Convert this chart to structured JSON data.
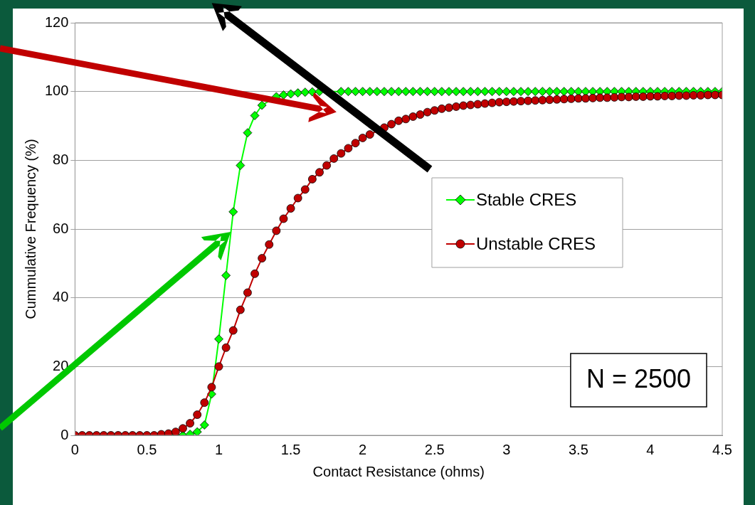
{
  "chart_data": {
    "type": "line",
    "xlabel": "Contact Resistance (ohms)",
    "ylabel": "Cummulative Frequency (%)",
    "x": [
      0,
      0.05,
      0.1,
      0.15,
      0.2,
      0.25,
      0.3,
      0.35,
      0.4,
      0.45,
      0.5,
      0.55,
      0.6,
      0.65,
      0.7,
      0.75,
      0.8,
      0.85,
      0.9,
      0.95,
      1,
      1.05,
      1.1,
      1.15,
      1.2,
      1.25,
      1.3,
      1.35,
      1.4,
      1.45,
      1.5,
      1.55,
      1.6,
      1.65,
      1.7,
      1.75,
      1.8,
      1.85,
      1.9,
      1.95,
      2,
      2.05,
      2.1,
      2.15,
      2.2,
      2.25,
      2.3,
      2.35,
      2.4,
      2.45,
      2.5,
      2.55,
      2.6,
      2.65,
      2.7,
      2.75,
      2.8,
      2.85,
      2.9,
      2.95,
      3,
      3.05,
      3.1,
      3.15,
      3.2,
      3.25,
      3.3,
      3.35,
      3.4,
      3.45,
      3.5,
      3.55,
      3.6,
      3.65,
      3.7,
      3.75,
      3.8,
      3.85,
      3.9,
      3.95,
      4,
      4.05,
      4.1,
      4.15,
      4.2,
      4.25,
      4.3,
      4.35,
      4.4,
      4.45,
      4.5
    ],
    "series": [
      {
        "name": "Stable CRES",
        "color": "#00ff00",
        "marker": "diamond",
        "values": [
          null,
          null,
          null,
          null,
          null,
          null,
          null,
          null,
          null,
          null,
          null,
          null,
          null,
          null,
          0,
          0,
          0.3,
          1,
          3,
          12,
          28,
          46.5,
          65,
          78.5,
          88,
          93,
          96,
          null,
          98.5,
          99,
          99.3,
          99.6,
          99.8,
          99.9,
          100,
          null,
          null,
          100,
          100,
          100,
          100,
          100,
          100,
          100,
          100,
          100,
          100,
          100,
          100,
          100,
          100,
          100,
          100,
          100,
          100,
          100,
          100,
          100,
          100,
          100,
          100,
          100,
          100,
          100,
          100,
          100,
          100,
          100,
          100,
          100,
          100,
          100,
          100,
          100,
          100,
          100,
          100,
          100,
          100,
          100,
          100,
          100,
          100,
          100,
          100,
          100,
          100,
          100,
          100,
          100,
          100
        ]
      },
      {
        "name": "Unstable CRES",
        "color": "#c00000",
        "marker": "circle",
        "values": [
          0,
          0,
          0,
          0,
          0,
          0,
          0,
          0,
          0,
          0,
          0,
          0,
          0.3,
          0.5,
          1,
          2,
          3.5,
          6,
          9.5,
          14,
          20,
          25.5,
          30.5,
          36.5,
          41.5,
          47,
          51.5,
          55.5,
          59.5,
          63,
          66,
          69,
          71.5,
          74.5,
          76.5,
          78.5,
          80.5,
          82,
          83.5,
          85,
          86.5,
          87.5,
          null,
          89.5,
          90.5,
          91.5,
          92,
          92.7,
          93.3,
          94,
          94.5,
          95,
          95.3,
          95.6,
          95.9,
          96.1,
          96.3,
          96.5,
          96.7,
          96.9,
          97,
          97.1,
          97.2,
          97.3,
          97.4,
          97.5,
          97.6,
          97.7,
          97.8,
          97.9,
          98,
          98,
          98.1,
          98.2,
          98.2,
          98.3,
          98.4,
          98.4,
          98.5,
          98.5,
          98.6,
          98.6,
          98.7,
          98.7,
          98.8,
          98.8,
          98.9,
          98.9,
          99,
          99,
          99
        ]
      }
    ],
    "xlim": [
      0,
      4.5
    ],
    "xticks": [
      0,
      0.5,
      1,
      1.5,
      2,
      2.5,
      3,
      3.5,
      4,
      4.5
    ],
    "ylim": [
      0,
      120
    ],
    "yticks": [
      0,
      20,
      40,
      60,
      80,
      100,
      120
    ],
    "grid": "y",
    "legend": "right",
    "line_style": "solid",
    "annotations": [
      "N = 2500"
    ]
  }
}
